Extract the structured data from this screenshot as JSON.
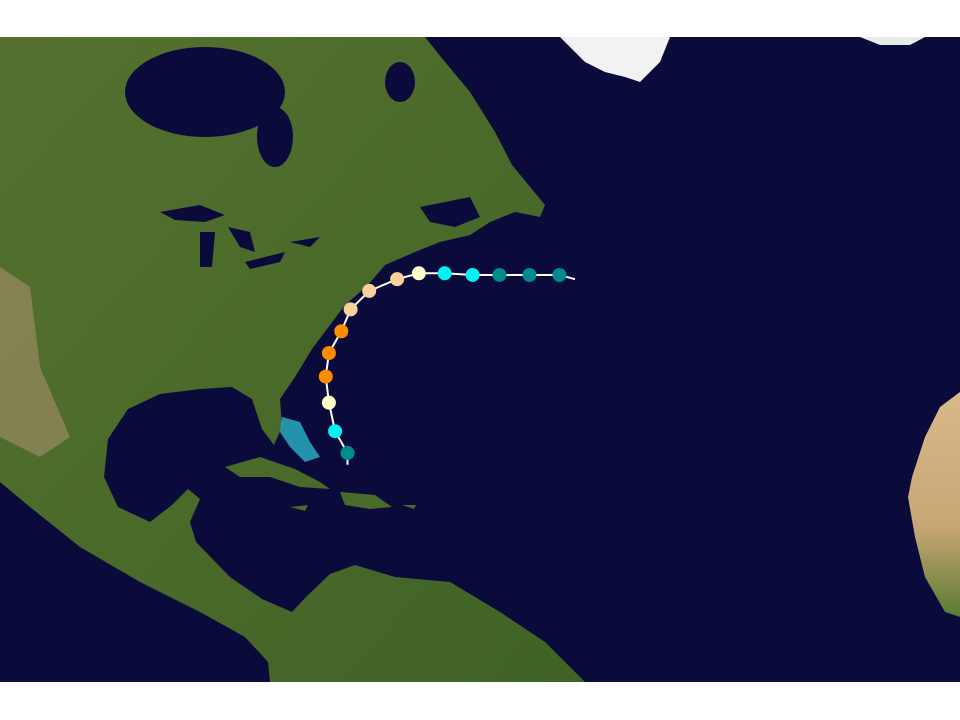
{
  "map": {
    "type": "storm-track",
    "background": "satellite-imagery",
    "ocean_color": "#0b0b3b",
    "land_color": "#4b6b2c",
    "track_line_color": "#ffffff",
    "stage_colors": {
      "teal": "#008c8c",
      "cyan": "#00f2f2",
      "light-yellow": "#ffffcc",
      "orange": "#ff8c00",
      "peach": "#fcd09a"
    },
    "track_tail_start": {
      "lon": -71.7,
      "lat": 17.7
    },
    "track_tail_end": {
      "lon": -49.7,
      "lat": 39.8
    },
    "track": [
      {
        "lon": -71.7,
        "lat": 19.1,
        "stage": "teal"
      },
      {
        "lon": -72.9,
        "lat": 21.7,
        "stage": "cyan"
      },
      {
        "lon": -73.5,
        "lat": 25.1,
        "stage": "light-yellow"
      },
      {
        "lon": -73.8,
        "lat": 28.2,
        "stage": "orange"
      },
      {
        "lon": -73.5,
        "lat": 31.0,
        "stage": "orange"
      },
      {
        "lon": -72.3,
        "lat": 33.6,
        "stage": "orange"
      },
      {
        "lon": -71.4,
        "lat": 36.2,
        "stage": "peach"
      },
      {
        "lon": -69.6,
        "lat": 38.4,
        "stage": "peach"
      },
      {
        "lon": -66.9,
        "lat": 39.8,
        "stage": "peach"
      },
      {
        "lon": -64.8,
        "lat": 40.5,
        "stage": "light-yellow"
      },
      {
        "lon": -62.3,
        "lat": 40.5,
        "stage": "cyan"
      },
      {
        "lon": -59.6,
        "lat": 40.3,
        "stage": "cyan"
      },
      {
        "lon": -57.0,
        "lat": 40.3,
        "stage": "teal"
      },
      {
        "lon": -54.1,
        "lat": 40.3,
        "stage": "teal"
      },
      {
        "lon": -51.2,
        "lat": 40.3,
        "stage": "teal"
      }
    ]
  }
}
